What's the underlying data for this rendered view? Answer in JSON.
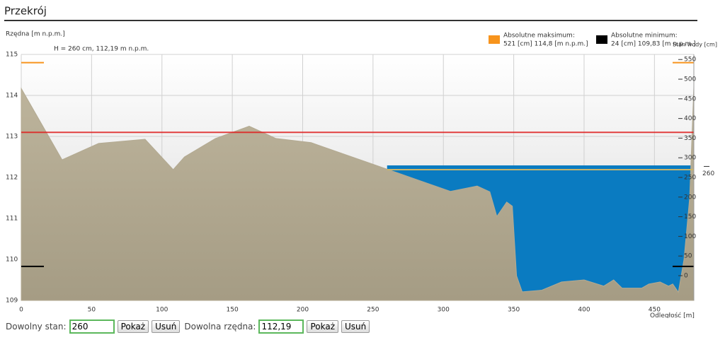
{
  "header": {
    "title": "Przekrój"
  },
  "chart_data": {
    "type": "area",
    "y_label": "Rzędna [m n.p.m.]",
    "y2_label": "Stan wody [cm]",
    "x_label": "Odległość [m]",
    "annotation": "H = 260 cm, 112,19 m n.p.m.",
    "xlim": [
      0,
      478
    ],
    "ylim": [
      109,
      115
    ],
    "y2lim": [
      -63,
      563
    ],
    "xticks": [
      0,
      50,
      100,
      150,
      200,
      250,
      300,
      350,
      400,
      450
    ],
    "yticks": [
      109,
      110,
      111,
      112,
      113,
      114,
      115
    ],
    "y2ticks": [
      0,
      50,
      100,
      150,
      200,
      250,
      300,
      350,
      400,
      450,
      500,
      550
    ],
    "grid": true,
    "terrain": {
      "color": "#b3aa92",
      "x": [
        0,
        29,
        55,
        88,
        108,
        116,
        138,
        162,
        181,
        206,
        210,
        260,
        305,
        324,
        333,
        338,
        345,
        349,
        352,
        356,
        370,
        384,
        400,
        414,
        421,
        427,
        441,
        446,
        454,
        460,
        463,
        467,
        471,
        475,
        478
      ],
      "values": [
        114.17,
        112.43,
        112.83,
        112.93,
        112.19,
        112.5,
        112.95,
        113.25,
        112.95,
        112.85,
        112.8,
        112.2,
        111.66,
        111.79,
        111.65,
        111.05,
        111.4,
        111.3,
        109.6,
        109.21,
        109.25,
        109.45,
        109.5,
        109.35,
        109.5,
        109.3,
        109.3,
        109.4,
        109.45,
        109.35,
        109.4,
        109.2,
        110.0,
        111.5,
        114.2
      ]
    },
    "water": {
      "level": 112.19,
      "level_cm": 260,
      "from_x": 260,
      "color": "#0a7bc1"
    },
    "alarm_level": 113.1,
    "alarm_color": "#e02020",
    "legend": [
      {
        "label": "Absolutne maksimum:",
        "text": "521 [cm] 114,8 [m n.p.m.]",
        "value": 114.8,
        "color": "#f7941d"
      },
      {
        "label": "Absolutne minimum:",
        "text": "24 [cm] 109,83 [m n.p.m.]",
        "value": 109.83,
        "color": "#000000"
      }
    ]
  },
  "controls": {
    "stan_label": "Dowolny stan:",
    "stan_value": "260",
    "rzedna_label": "Dowolna rzędna:",
    "rzedna_value": "112,19",
    "show": "Pokaż",
    "remove": "Usuń"
  }
}
